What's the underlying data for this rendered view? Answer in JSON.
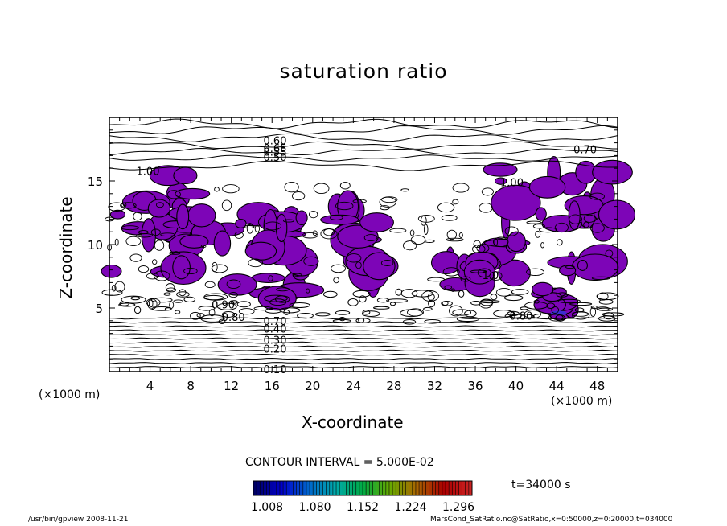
{
  "chart_data": {
    "type": "heatmap",
    "title": "saturation ratio",
    "xlabel": "X-coordinate",
    "ylabel": "Z-coordinate",
    "x_unit": "(×1000 m)",
    "xlim": [
      0,
      50
    ],
    "ylim": [
      0,
      20
    ],
    "x_ticks": [
      4,
      8,
      12,
      16,
      20,
      24,
      28,
      32,
      36,
      40,
      44,
      48
    ],
    "y_ticks": [
      5,
      10,
      15
    ],
    "contour_interval": "CONTOUR INTERVAL = 5.000E-02",
    "contour_labels": [
      {
        "text": "0.60",
        "x": 16.3,
        "z": 18.1
      },
      {
        "text": "0.65",
        "x": 16.3,
        "z": 17.5
      },
      {
        "text": "0.55",
        "x": 16.3,
        "z": 17.2
      },
      {
        "text": "0.50",
        "x": 16.3,
        "z": 16.8
      },
      {
        "text": "0.70",
        "x": 46.8,
        "z": 17.4
      },
      {
        "text": "1.00",
        "x": 3.8,
        "z": 15.7
      },
      {
        "text": "1.00",
        "x": 39.6,
        "z": 14.8
      },
      {
        "text": "1.0",
        "x": 37.5,
        "z": 7.5
      },
      {
        "text": "0.90",
        "x": 11.2,
        "z": 5.2
      },
      {
        "text": "0.80",
        "x": 12.2,
        "z": 4.2
      },
      {
        "text": "0.80",
        "x": 40.5,
        "z": 4.3
      },
      {
        "text": "0.70",
        "x": 16.3,
        "z": 3.9
      },
      {
        "text": "0.40",
        "x": 16.3,
        "z": 3.3
      },
      {
        "text": "0.30",
        "x": 16.3,
        "z": 2.4
      },
      {
        "text": "0.20",
        "x": 16.3,
        "z": 1.7
      },
      {
        "text": "0.10",
        "x": 16.3,
        "z": 0.1
      }
    ],
    "shading": {
      "fill_threshold": 1.0,
      "fill_color": "#7d05b7",
      "peak_color": "#3a2fd0",
      "regions": [
        {
          "name": "upper-left supersaturated band",
          "x": [
            0.2,
            8.2
          ],
          "z": [
            7.2,
            15.9
          ]
        },
        {
          "name": "upper-right supersaturated band",
          "x": [
            37.5,
            50
          ],
          "z": [
            7.5,
            15.9
          ]
        },
        {
          "name": "central plume",
          "x": [
            21.5,
            27.0
          ],
          "z": [
            7.0,
            13.5
          ]
        },
        {
          "name": "mid-left patches",
          "x": [
            6.5,
            19.5
          ],
          "z": [
            5.5,
            12.5
          ]
        },
        {
          "name": "mid-right patch",
          "x": [
            33.0,
            37.2
          ],
          "z": [
            6.5,
            9.0
          ]
        },
        {
          "name": "lower-right cloud",
          "x": [
            42.0,
            46.0
          ],
          "z": [
            4.5,
            6.6
          ]
        }
      ]
    },
    "colorbar": {
      "min": 1.008,
      "max": 1.296,
      "tick_labels": [
        "1.008",
        "1.080",
        "1.152",
        "1.224",
        "1.296"
      ],
      "colors": [
        "#000066",
        "#0000cc",
        "#0066cc",
        "#00aaaa",
        "#00aa44",
        "#66aa00",
        "#aa6600",
        "#aa0000",
        "#cc2222"
      ]
    },
    "time_label": "t=34000 s",
    "grid": false
  },
  "footer": {
    "left": "/usr/bin/gpview   2008-11-21",
    "right": "MarsCond_SatRatio.nc@SatRatio,x=0:50000,z=0:20000,t=034000"
  }
}
